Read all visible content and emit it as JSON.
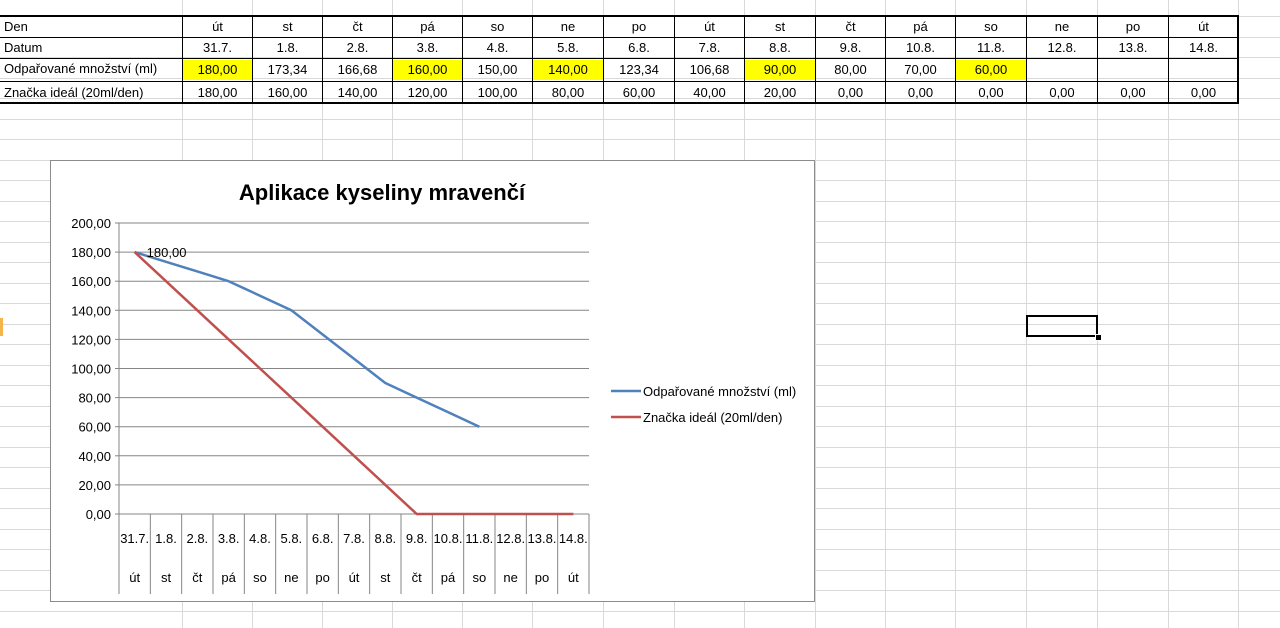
{
  "table": {
    "row_labels": [
      "Den",
      "Datum",
      "Odpařované množství (ml)",
      "Značka ideál (20ml/den)"
    ],
    "days": [
      "út",
      "st",
      "čt",
      "pá",
      "so",
      "ne",
      "po",
      "út",
      "st",
      "čt",
      "pá",
      "so",
      "ne",
      "po",
      "út"
    ],
    "dates": [
      "31.7.",
      "1.8.",
      "2.8.",
      "3.8.",
      "4.8.",
      "5.8.",
      "6.8.",
      "7.8.",
      "8.8.",
      "9.8.",
      "10.8.",
      "11.8.",
      "12.8.",
      "13.8.",
      "14.8."
    ],
    "evaporated": [
      "180,00",
      "173,34",
      "166,68",
      "160,00",
      "150,00",
      "140,00",
      "123,34",
      "106,68",
      "90,00",
      "80,00",
      "70,00",
      "60,00",
      "",
      "",
      ""
    ],
    "ideal": [
      "180,00",
      "160,00",
      "140,00",
      "120,00",
      "100,00",
      "80,00",
      "60,00",
      "40,00",
      "20,00",
      "0,00",
      "0,00",
      "0,00",
      "0,00",
      "0,00",
      "0,00"
    ],
    "highlight_color": "#ffff00"
  },
  "chart_data": {
    "type": "line",
    "title": "Aplikace kyseliny mravenčí",
    "categories": [
      "31.7.",
      "1.8.",
      "2.8.",
      "3.8.",
      "4.8.",
      "5.8.",
      "6.8.",
      "7.8.",
      "8.8.",
      "9.8.",
      "10.8.",
      "11.8.",
      "12.8.",
      "13.8.",
      "14.8."
    ],
    "category_days": [
      "út",
      "st",
      "čt",
      "pá",
      "so",
      "ne",
      "po",
      "út",
      "st",
      "čt",
      "pá",
      "so",
      "ne",
      "po",
      "út"
    ],
    "ylim": [
      0,
      200
    ],
    "y_ticks": [
      "0,00",
      "20,00",
      "40,00",
      "60,00",
      "80,00",
      "100,00",
      "120,00",
      "140,00",
      "160,00",
      "180,00",
      "200,00"
    ],
    "grid": true,
    "legend_position": "right",
    "data_label": "180,00",
    "series": [
      {
        "name": "Odpařované množství (ml)",
        "color": "#4f81bd",
        "values": [
          180,
          173.34,
          166.68,
          160,
          150,
          140,
          123.34,
          106.68,
          90,
          80,
          70,
          60,
          null,
          null,
          null
        ]
      },
      {
        "name": "Značka ideál (20ml/den)",
        "color": "#c0504d",
        "values": [
          180,
          160,
          140,
          120,
          100,
          80,
          60,
          40,
          20,
          0,
          0,
          0,
          0,
          0,
          0
        ]
      }
    ]
  }
}
